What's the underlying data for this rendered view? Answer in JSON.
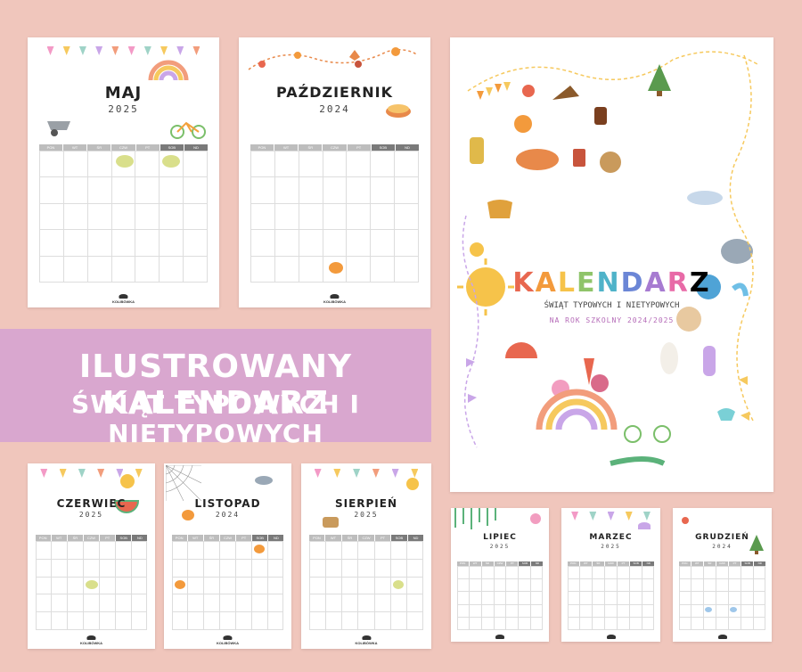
{
  "banner": {
    "line1": "ILUSTROWANY KALENDARZ",
    "line2": "ŚWIĄT TYPOWYCH I NIETYPOWYCH"
  },
  "cover": {
    "title_letters": [
      "K",
      "A",
      "L",
      "E",
      "N",
      "D",
      "A",
      "R",
      "Z"
    ],
    "subtitle": "ŚWIĄT TYPOWYCH I NIETYPOWYCH",
    "subtitle2": "NA ROK SZKOLNY 2024/2025"
  },
  "weekdays": [
    "PON",
    "WT",
    "ŚR",
    "CZW",
    "PT",
    "SOB",
    "ND"
  ],
  "logo_text": "KOLIBÓWKA",
  "calendars": [
    {
      "month": "MAJ",
      "year": "2025"
    },
    {
      "month": "PAŹDZIERNIK",
      "year": "2024"
    },
    {
      "month": "CZERWIEC",
      "year": "2025"
    },
    {
      "month": "LISTOPAD",
      "year": "2024"
    },
    {
      "month": "SIERPIEŃ",
      "year": "2025"
    },
    {
      "month": "LIPIEC",
      "year": "2025"
    },
    {
      "month": "MARZEC",
      "year": "2025"
    },
    {
      "month": "GRUDZIEŃ",
      "year": "2024"
    }
  ],
  "colors": {
    "background": "#f0c6bc",
    "banner": "#d9a7cf",
    "weekday_header": "#bdbdbd",
    "weekend_header": "#7a7a7a"
  }
}
